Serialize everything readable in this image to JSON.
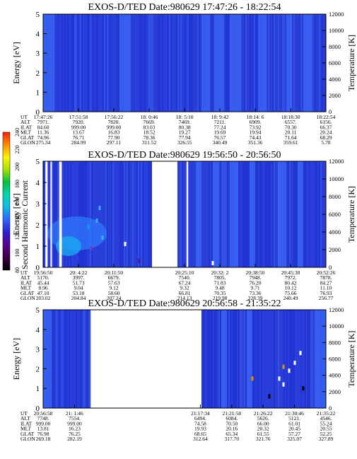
{
  "colors": {
    "background": "#2a3fd9",
    "dark_band": "#1a2ed0",
    "light_band": "#3b66f2",
    "gap": "#ffffff",
    "colorbar_stops": [
      "#000000",
      "#3a0040",
      "#5a0090",
      "#2a1fd0",
      "#2f62ff",
      "#10b8e8",
      "#00d8b0",
      "#00c040",
      "#a0e000",
      "#fff200",
      "#ff9000",
      "#ff2000"
    ]
  },
  "colorbar": {
    "label": "Second Harmonic Current",
    "ticks": [
      "240",
      "220",
      "200",
      "180",
      "160",
      "140",
      "120",
      "100",
      "80"
    ]
  },
  "chart_data": [
    {
      "type": "heatmap",
      "title": "EXOS-D/TED   Date:980629   17:47:26 - 18:22:54",
      "ylabel": "Energy [eV]",
      "y2label": "Temperature [K]",
      "ylim": [
        0,
        5
      ],
      "y2lim": [
        0,
        12000
      ],
      "yticks": [
        "0",
        "1",
        "2",
        "3",
        "4",
        "5"
      ],
      "y2ticks": [
        "0",
        "2000",
        "4000",
        "6000",
        "8000",
        "10000",
        "12000"
      ],
      "orbit_labels": [
        "UT",
        "ALT",
        "ILAT",
        "MLT",
        "GLAT",
        "GLON"
      ],
      "orbit_columns": [
        {
          "frac": 0.0,
          "values": [
            "17:47:26",
            "7971.",
            "84.60",
            "11.36",
            "74.96",
            "275.34"
          ]
        },
        {
          "frac": 0.167,
          "values": [
            "17:51:58",
            "7920.",
            "999.00",
            "13.67",
            "76.71",
            "284.99"
          ]
        },
        {
          "frac": 0.333,
          "values": [
            "17:56:22",
            "7820.",
            "999.00",
            "16.83",
            "77.90",
            "297.11"
          ]
        },
        {
          "frac": 0.5,
          "values": [
            "18: 0:46",
            "7669.",
            "83.03",
            "18.52",
            "78.36",
            "311.52"
          ]
        },
        {
          "frac": 0.667,
          "values": [
            "18: 5:10",
            "7469.",
            "80.38",
            "19.27",
            "77.94",
            "326.55"
          ]
        },
        {
          "frac": 0.833,
          "values": [
            "18: 9:42",
            "7211.",
            "77.24",
            "19.69",
            "76.57",
            "340.49"
          ]
        },
        {
          "frac": 1.0,
          "values": [
            "18:14: 6",
            "6909.",
            "73.92",
            "19.94",
            "74.43",
            "351.36"
          ]
        },
        {
          "frac": 1.167,
          "values": [
            "18:18:30",
            "6557.",
            "70.30",
            "20.11",
            "71.64",
            "359.61"
          ]
        },
        {
          "frac": 1.333,
          "values": [
            "18:22:54",
            "6156.",
            "66.37",
            "20.24",
            "68.29",
            "5.78"
          ]
        }
      ],
      "gaps": [],
      "bands": [
        {
          "from": 0.0,
          "to": 0.04,
          "tone": "light"
        },
        {
          "from": 0.27,
          "to": 0.31,
          "tone": "light"
        },
        {
          "from": 0.56,
          "to": 0.59,
          "tone": "light"
        },
        {
          "from": 0.605,
          "to": 0.64,
          "tone": "light"
        },
        {
          "from": 0.66,
          "to": 0.7,
          "tone": "light"
        },
        {
          "from": 0.76,
          "to": 0.79,
          "tone": "light"
        },
        {
          "from": 0.86,
          "to": 0.88,
          "tone": "light"
        },
        {
          "from": 0.92,
          "to": 0.95,
          "tone": "light"
        }
      ],
      "spots": []
    },
    {
      "type": "heatmap",
      "title": "EXOS-D/TED   Date:980629   19:56:50 - 20:56:50",
      "ylabel": "Energy [eV]",
      "y2label": "Temperature [K]",
      "ylim": [
        0,
        5
      ],
      "y2lim": [
        0,
        12000
      ],
      "yticks": [
        "0",
        "1",
        "2",
        "3",
        "4",
        "5"
      ],
      "y2ticks": [
        "0",
        "2000",
        "4000",
        "6000",
        "8000",
        "10000",
        "12000"
      ],
      "orbit_labels": [
        "UT",
        "ALT",
        "ILAT",
        "MLT",
        "GLAT",
        "GLON"
      ],
      "orbit_columns": [
        {
          "frac": 0.0,
          "values": [
            "19:56:50",
            "5170.",
            "45.44",
            "8.96",
            "47.10",
            "203.02"
          ]
        },
        {
          "frac": 0.125,
          "values": [
            "20: 4:22",
            "3997.",
            "51.73",
            "9.04",
            "53.18",
            "204.84"
          ]
        },
        {
          "frac": 0.25,
          "values": [
            "20:11:50",
            "6679.",
            "57.63",
            "9.12",
            "58.60",
            "207.24"
          ]
        },
        {
          "frac": 0.5,
          "values": [
            "20:25:10",
            "7540.",
            "67.24",
            "9.32",
            "66.81",
            "214.13"
          ]
        },
        {
          "frac": 0.625,
          "values": [
            "20:32: 2",
            "7805.",
            "71.83",
            "9.48",
            "70.35",
            "219.98"
          ]
        },
        {
          "frac": 0.75,
          "values": [
            "20:38:50",
            "7948.",
            "76.20",
            "9.71",
            "73.36",
            "228.39"
          ]
        },
        {
          "frac": 0.875,
          "values": [
            "20:45:38",
            "7972.",
            "80.42",
            "10.12",
            "75.66",
            "240.49"
          ]
        },
        {
          "frac": 1.0,
          "values": [
            "20:52:26",
            "7878.",
            "84.27",
            "11.10",
            "76.93",
            "256.77"
          ]
        }
      ],
      "gaps": [
        {
          "from": 0.008,
          "to": 0.016
        },
        {
          "from": 0.026,
          "to": 0.031
        },
        {
          "from": 0.057,
          "to": 0.066
        },
        {
          "from": 0.385,
          "to": 0.475
        },
        {
          "from": 0.507,
          "to": 0.513
        }
      ],
      "bands": [
        {
          "from": 0.54,
          "to": 0.56,
          "tone": "light"
        },
        {
          "from": 0.6,
          "to": 0.62,
          "tone": "light"
        },
        {
          "from": 0.66,
          "to": 0.69,
          "tone": "light"
        },
        {
          "from": 0.73,
          "to": 0.75,
          "tone": "light"
        },
        {
          "from": 0.83,
          "to": 0.86,
          "tone": "light"
        },
        {
          "from": 0.9,
          "to": 0.92,
          "tone": "light"
        }
      ],
      "spots": [
        {
          "x": 0.19,
          "y": 2.2,
          "c": "#30b0ff"
        },
        {
          "x": 0.21,
          "y": 1.4,
          "c": "#30b0ff"
        },
        {
          "x": 0.17,
          "y": 0.9,
          "c": "#6a40c0"
        },
        {
          "x": 0.2,
          "y": 2.8,
          "c": "#30b0ff"
        },
        {
          "x": 0.16,
          "y": 1.9,
          "c": "#0a9ae0"
        },
        {
          "x": 0.29,
          "y": 1.1,
          "c": "#ffffff"
        },
        {
          "x": 0.34,
          "y": 0.3,
          "c": "#5a1090"
        },
        {
          "x": 0.6,
          "y": 0.2,
          "c": "#ffffff"
        }
      ]
    },
    {
      "type": "heatmap",
      "title": "EXOS-D/TED   Date:980629   20:56:58 - 21:35:22",
      "ylabel": "Energy [eV]",
      "y2label": "Temperature [K]",
      "ylim": [
        0,
        5
      ],
      "y2lim": [
        0,
        12000
      ],
      "yticks": [
        "0",
        "1",
        "2",
        "3",
        "4",
        "5"
      ],
      "y2ticks": [
        "0",
        "2000",
        "4000",
        "6000",
        "8000",
        "10000",
        "12000"
      ],
      "orbit_labels": [
        "UT",
        "ALT",
        "ILAT",
        "MLT",
        "GLAT",
        "GLON"
      ],
      "orbit_columns": [
        {
          "frac": 0.0,
          "values": [
            "20:56:58",
            "7748.",
            "999.00",
            "13.81",
            "76.98",
            "269.18"
          ]
        },
        {
          "frac": 0.111,
          "values": [
            "21: 1:46",
            "7554.",
            "999.00",
            "16.23",
            "76.25",
            "282.19"
          ]
        },
        {
          "frac": 0.556,
          "values": [
            "21:17:34",
            "6494.",
            "74.58",
            "19.93",
            "68.65",
            "312.64"
          ]
        },
        {
          "frac": 0.667,
          "values": [
            "21:21:58",
            "6084.",
            "70.50",
            "20.16",
            "65.34",
            "317.70"
          ]
        },
        {
          "frac": 0.778,
          "values": [
            "21:26:22",
            "5626.",
            "66.00",
            "20.32",
            "61.55",
            "321.76"
          ]
        },
        {
          "frac": 0.889,
          "values": [
            "21:30:46",
            "5121.",
            "61.01",
            "20.45",
            "57.27",
            "325.07"
          ]
        },
        {
          "frac": 1.0,
          "values": [
            "21:35:22",
            "4546.",
            "55.24",
            "20.55",
            "52.25",
            "327.89"
          ]
        }
      ],
      "gaps": [
        {
          "from": 0.168,
          "to": 0.56
        }
      ],
      "bands": [
        {
          "from": 0.0,
          "to": 0.03,
          "tone": "light"
        },
        {
          "from": 0.63,
          "to": 0.65,
          "tone": "light"
        },
        {
          "from": 0.72,
          "to": 0.74,
          "tone": "light"
        },
        {
          "from": 0.96,
          "to": 1.0,
          "tone": "light"
        }
      ],
      "spots": [
        {
          "x": 0.835,
          "y": 1.5,
          "c": "#ffffff"
        },
        {
          "x": 0.85,
          "y": 1.2,
          "c": "#ffffff"
        },
        {
          "x": 0.87,
          "y": 1.9,
          "c": "#ffffff"
        },
        {
          "x": 0.89,
          "y": 2.3,
          "c": "#ffffff"
        },
        {
          "x": 0.91,
          "y": 2.8,
          "c": "#ffffff"
        },
        {
          "x": 0.85,
          "y": 2.1,
          "c": "#e09000"
        },
        {
          "x": 0.74,
          "y": 1.5,
          "c": "#e09000"
        },
        {
          "x": 0.92,
          "y": 1.0,
          "c": "#000000"
        },
        {
          "x": 0.8,
          "y": 0.6,
          "c": "#000000"
        }
      ]
    }
  ]
}
